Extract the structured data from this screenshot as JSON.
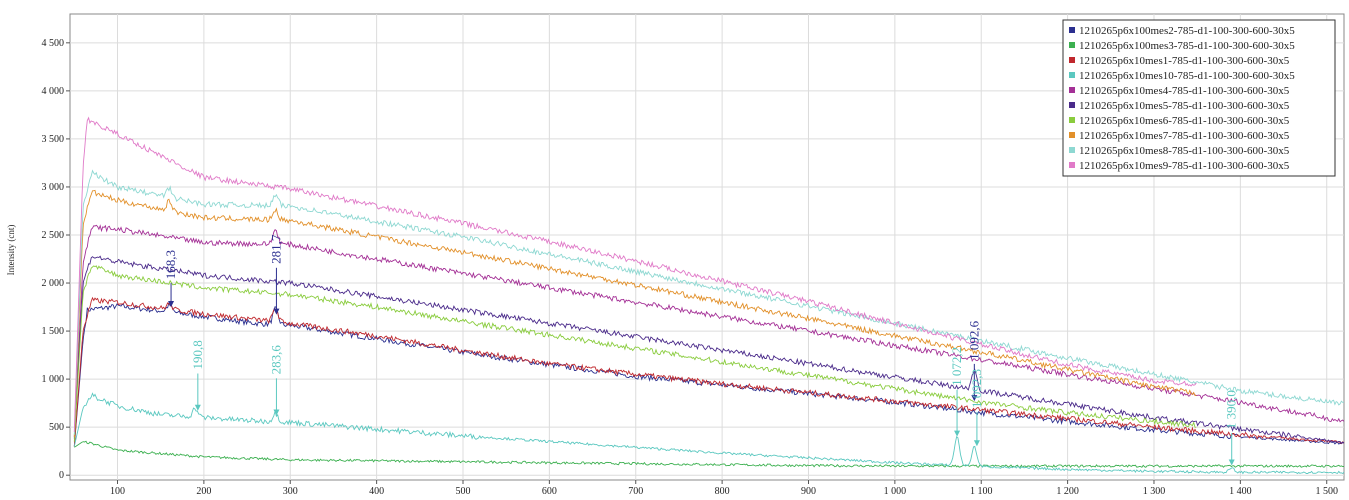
{
  "chart_data": {
    "type": "line",
    "ylabel": "Intensity (cnt)",
    "xlabel": "",
    "xlim": [
      45,
      1520
    ],
    "ylim": [
      -50,
      4800
    ],
    "x_ticks": [
      100,
      200,
      300,
      400,
      500,
      600,
      700,
      800,
      900,
      1000,
      1100,
      1200,
      1300,
      1400,
      1500
    ],
    "x_tick_labels": [
      "100",
      "200",
      "300",
      "400",
      "500",
      "600",
      "700",
      "800",
      "900",
      "1 000",
      "1 100",
      "1 200",
      "1 300",
      "1 400",
      "1 500"
    ],
    "y_ticks": [
      0,
      500,
      1000,
      1500,
      2000,
      2500,
      3000,
      3500,
      4000,
      4500
    ],
    "y_tick_labels": [
      "0",
      "500",
      "1 000",
      "1 500",
      "2 000",
      "2 500",
      "3 000",
      "3 500",
      "4 000",
      "4 500"
    ],
    "grid": true,
    "legend_position": "top-right",
    "series": [
      {
        "name": "1210265p6x100mes2-785-d1-100-300-600-30x5",
        "color": "#2b2f8f",
        "x": [
          50,
          60,
          65,
          100,
          160,
          200,
          260,
          300,
          400,
          500,
          600,
          700,
          800,
          900,
          1000,
          1100,
          1200,
          1300,
          1400,
          1520
        ],
        "y": [
          300,
          1400,
          1720,
          1760,
          1700,
          1650,
          1580,
          1560,
          1420,
          1280,
          1150,
          1030,
          940,
          850,
          760,
          650,
          560,
          470,
          400,
          330
        ]
      },
      {
        "name": "1210265p6x100mes3-785-d1-100-300-600-30x5",
        "color": "#3cb050",
        "x": [
          50,
          60,
          70,
          100,
          200,
          300,
          400,
          500,
          600,
          700,
          800,
          900,
          1000,
          1100,
          1200,
          1300,
          1400,
          1520
        ],
        "y": [
          290,
          350,
          330,
          260,
          190,
          160,
          150,
          140,
          130,
          120,
          110,
          100,
          95,
          95,
          95,
          95,
          95,
          95
        ]
      },
      {
        "name": "1210265p6x10mes1-785-d1-100-300-600-30x5",
        "color": "#c0282d",
        "x": [
          50,
          60,
          70,
          100,
          200,
          300,
          400,
          500,
          600,
          700,
          800,
          900,
          1000,
          1100,
          1200,
          1300,
          1400,
          1520
        ],
        "y": [
          300,
          1500,
          1820,
          1800,
          1680,
          1580,
          1450,
          1300,
          1160,
          1050,
          950,
          860,
          770,
          680,
          590,
          500,
          420,
          340
        ]
      },
      {
        "name": "1210265p6x10mes10-785-d1-100-300-600-30x5",
        "color": "#5bc8c0",
        "x": [
          50,
          60,
          70,
          100,
          150,
          200,
          250,
          300,
          400,
          500,
          600,
          700,
          800,
          900,
          1000,
          1100,
          1200,
          1300,
          1400,
          1520
        ],
        "y": [
          300,
          700,
          830,
          720,
          630,
          600,
          570,
          550,
          480,
          410,
          350,
          290,
          230,
          180,
          130,
          90,
          60,
          40,
          30,
          30
        ]
      },
      {
        "name": "1210265p6x10mes4-785-d1-100-300-600-30x5",
        "color": "#a43096",
        "x": [
          50,
          60,
          70,
          100,
          200,
          300,
          400,
          500,
          600,
          700,
          800,
          900,
          1000,
          1100,
          1200,
          1300,
          1400,
          1520
        ],
        "y": [
          400,
          2200,
          2580,
          2560,
          2420,
          2400,
          2250,
          2100,
          1950,
          1800,
          1650,
          1500,
          1350,
          1200,
          1050,
          900,
          760,
          560
        ]
      },
      {
        "name": "1210265p6x10mes5-785-d1-100-300-600-30x5",
        "color": "#4a2a8a",
        "x": [
          50,
          60,
          70,
          100,
          200,
          300,
          400,
          500,
          600,
          700,
          800,
          900,
          1000,
          1100,
          1200,
          1300,
          1400,
          1520
        ],
        "y": [
          380,
          2000,
          2280,
          2220,
          2080,
          2000,
          1860,
          1720,
          1580,
          1440,
          1300,
          1160,
          1020,
          880,
          740,
          600,
          480,
          340
        ]
      },
      {
        "name": "1210265p6x10mes6-785-d1-100-300-600-30x5",
        "color": "#8acc3e",
        "x": [
          50,
          60,
          70,
          100,
          200,
          300,
          400,
          500,
          600,
          700,
          800,
          900,
          1000,
          1100,
          1200,
          1300,
          1350
        ],
        "y": [
          350,
          1900,
          2180,
          2080,
          1950,
          1880,
          1750,
          1600,
          1460,
          1320,
          1180,
          1040,
          900,
          760,
          650,
          560,
          520
        ]
      },
      {
        "name": "1210265p6x10mes7-785-d1-100-300-600-30x5",
        "color": "#e2902a",
        "x": [
          50,
          60,
          70,
          100,
          200,
          300,
          400,
          500,
          600,
          700,
          800,
          900,
          1000,
          1100,
          1200,
          1300,
          1350
        ],
        "y": [
          400,
          2600,
          2950,
          2860,
          2680,
          2650,
          2480,
          2320,
          2150,
          1980,
          1800,
          1630,
          1450,
          1280,
          1100,
          920,
          850
        ]
      },
      {
        "name": "1210265p6x10mes8-785-d1-100-300-600-30x5",
        "color": "#8ed8d2",
        "x": [
          50,
          60,
          70,
          100,
          200,
          300,
          400,
          500,
          600,
          700,
          800,
          900,
          1000,
          1100,
          1200,
          1300,
          1400,
          1520
        ],
        "y": [
          420,
          2800,
          3150,
          3000,
          2820,
          2800,
          2640,
          2480,
          2300,
          2120,
          1940,
          1760,
          1580,
          1400,
          1220,
          1050,
          880,
          740
        ]
      },
      {
        "name": "1210265p6x10mes9-785-d1-100-300-600-30x5",
        "color": "#e07ac8",
        "x": [
          50,
          60,
          65,
          100,
          200,
          300,
          400,
          500,
          600,
          700,
          800,
          900,
          1000,
          1100,
          1200,
          1300,
          1350
        ],
        "y": [
          450,
          3200,
          3700,
          3550,
          3100,
          2980,
          2800,
          2620,
          2430,
          2230,
          2020,
          1810,
          1580,
          1360,
          1150,
          980,
          950
        ]
      }
    ],
    "annotations": [
      {
        "text": "168,3",
        "x": 162,
        "y": 2040,
        "arrow_to_y": 1730,
        "color": "#2b2f8f"
      },
      {
        "text": "281,7",
        "x": 284,
        "y": 2200,
        "arrow_to_y": 1650,
        "color": "#2b2f8f"
      },
      {
        "text": "190,8",
        "x": 193,
        "y": 1100,
        "arrow_to_y": 650,
        "color": "#5bc8c0"
      },
      {
        "text": "283,6",
        "x": 284,
        "y": 1050,
        "arrow_to_y": 600,
        "color": "#5bc8c0"
      },
      {
        "text": "1 072,2",
        "x": 1072,
        "y": 930,
        "arrow_to_y": 380,
        "color": "#5bc8c0"
      },
      {
        "text": "1 092,6",
        "x": 1092,
        "y": 1200,
        "arrow_to_y": 750,
        "color": "#2b2f8f"
      },
      {
        "text": "1 092,3",
        "x": 1095,
        "y": 700,
        "arrow_to_y": 280,
        "color": "#5bc8c0"
      },
      {
        "text": "1 390,0",
        "x": 1390,
        "y": 480,
        "arrow_to_y": 80,
        "color": "#5bc8c0"
      }
    ],
    "peaks": [
      {
        "series": 0,
        "x": 160,
        "height": 70
      },
      {
        "series": 0,
        "x": 283,
        "height": 160
      },
      {
        "series": 2,
        "x": 160,
        "height": 60
      },
      {
        "series": 2,
        "x": 283,
        "height": 140
      },
      {
        "series": 3,
        "x": 190,
        "height": 90
      },
      {
        "series": 3,
        "x": 283,
        "height": 90
      },
      {
        "series": 3,
        "x": 1072,
        "height": 300
      },
      {
        "series": 3,
        "x": 1092,
        "height": 200
      },
      {
        "series": 3,
        "x": 1390,
        "height": 40
      },
      {
        "series": 4,
        "x": 283,
        "height": 150
      },
      {
        "series": 5,
        "x": 1092,
        "height": 200
      },
      {
        "series": 7,
        "x": 160,
        "height": 100
      },
      {
        "series": 7,
        "x": 283,
        "height": 110
      },
      {
        "series": 8,
        "x": 160,
        "height": 90
      },
      {
        "series": 8,
        "x": 283,
        "height": 110
      }
    ]
  }
}
